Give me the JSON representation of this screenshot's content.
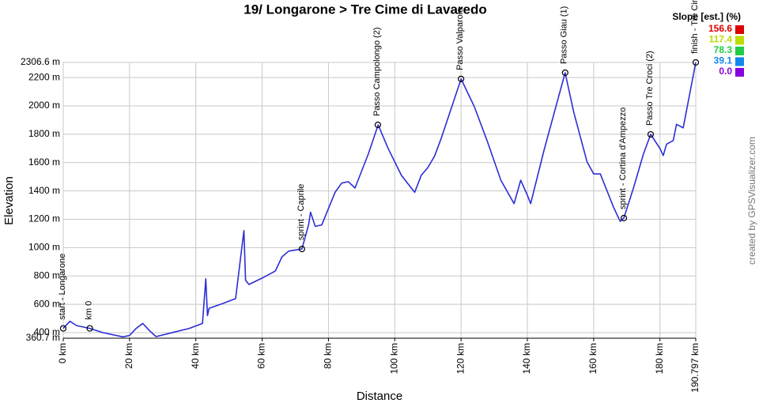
{
  "chart_data": {
    "type": "line",
    "title": "19/ Longarone > Tre Cime di Lavaredo",
    "x_label": "Distance",
    "y_label": "Elevation",
    "credit": "created by GPSVisualizer.com",
    "xlim": [
      0,
      190.797
    ],
    "ylim": [
      360.7,
      2306.6
    ],
    "xticks": [
      {
        "value": 0,
        "label": "0 km"
      },
      {
        "value": 20,
        "label": "20 km"
      },
      {
        "value": 40,
        "label": "40 km"
      },
      {
        "value": 60,
        "label": "60 km"
      },
      {
        "value": 80,
        "label": "80 km"
      },
      {
        "value": 100,
        "label": "100 km"
      },
      {
        "value": 120,
        "label": "120 km"
      },
      {
        "value": 140,
        "label": "140 km"
      },
      {
        "value": 160,
        "label": "160 km"
      },
      {
        "value": 180,
        "label": "180 km"
      },
      {
        "value": 190.797,
        "label": "190.797 km"
      }
    ],
    "yticks": [
      {
        "value": 360.7,
        "label": "360.7 m"
      },
      {
        "value": 400,
        "label": "400 m"
      },
      {
        "value": 600,
        "label": "600 m"
      },
      {
        "value": 800,
        "label": "800 m"
      },
      {
        "value": 1000,
        "label": "1000 m"
      },
      {
        "value": 1200,
        "label": "1200 m"
      },
      {
        "value": 1400,
        "label": "1400 m"
      },
      {
        "value": 1600,
        "label": "1600 m"
      },
      {
        "value": 1800,
        "label": "1800 m"
      },
      {
        "value": 2000,
        "label": "2000 m"
      },
      {
        "value": 2200,
        "label": "2200 m"
      },
      {
        "value": 2306.6,
        "label": "2306.6 m"
      }
    ],
    "grid": true,
    "series": [
      {
        "color": "#2d2dd6",
        "x": [
          0,
          2,
          4,
          8,
          12,
          18,
          20,
          22,
          24,
          26,
          28,
          32,
          38,
          42,
          43,
          43.5,
          44,
          48,
          52,
          54.5,
          55,
          56,
          60,
          64,
          66,
          68,
          72,
          74,
          74.6,
          76,
          78,
          82,
          84,
          86,
          88,
          92,
          95,
          98,
          102,
          106,
          108,
          110,
          112,
          114,
          120,
          124,
          128,
          132,
          136,
          138,
          140,
          141,
          145,
          151.4,
          154,
          158,
          160,
          162,
          166,
          168,
          169.1,
          172,
          175,
          177.2,
          180,
          181,
          182,
          184,
          185,
          187,
          190.797
        ],
        "values": [
          430,
          480,
          450,
          430,
          400,
          370,
          380,
          430,
          465,
          415,
          372,
          395,
          430,
          465,
          780,
          520,
          572,
          605,
          640,
          1120,
          770,
          740,
          785,
          835,
          935,
          975,
          990,
          1160,
          1250,
          1150,
          1160,
          1390,
          1455,
          1465,
          1420,
          1660,
          1866,
          1700,
          1510,
          1390,
          1510,
          1565,
          1645,
          1770,
          2190,
          1995,
          1745,
          1475,
          1310,
          1475,
          1370,
          1310,
          1685,
          2234,
          1955,
          1605,
          1520,
          1520,
          1285,
          1185,
          1208,
          1420,
          1660,
          1799,
          1700,
          1650,
          1730,
          1755,
          1870,
          1845,
          2306.6
        ]
      }
    ],
    "waypoints": [
      {
        "label": "start - Longarone",
        "x": 0,
        "y": 430
      },
      {
        "label": "km 0",
        "x": 8,
        "y": 430
      },
      {
        "label": "sprint - Caprile",
        "x": 72,
        "y": 990
      },
      {
        "label": "Passo Campolongo (2)",
        "x": 94.9,
        "y": 1866
      },
      {
        "label": "Passo Valparola",
        "x": 120,
        "y": 2190
      },
      {
        "label": "Passo Giau (1)",
        "x": 151.4,
        "y": 2234
      },
      {
        "label": "sprint - Cortina d'Ampezzo",
        "x": 169.1,
        "y": 1208
      },
      {
        "label": "Passo Tre Croci (2)",
        "x": 177.2,
        "y": 1799
      },
      {
        "label": "finish - Tre Cime",
        "x": 190.797,
        "y": 2306.6
      }
    ],
    "legend": {
      "title": "Slope [est.] (%)",
      "items": [
        {
          "value": 156.6,
          "color": "#dd0000"
        },
        {
          "value": 117.4,
          "color": "#bbdd00"
        },
        {
          "value": 78.3,
          "color": "#22cc44"
        },
        {
          "value": 39.1,
          "color": "#1188ee"
        },
        {
          "value": 0,
          "label": "0.0",
          "color": "#8800dd"
        }
      ]
    }
  }
}
